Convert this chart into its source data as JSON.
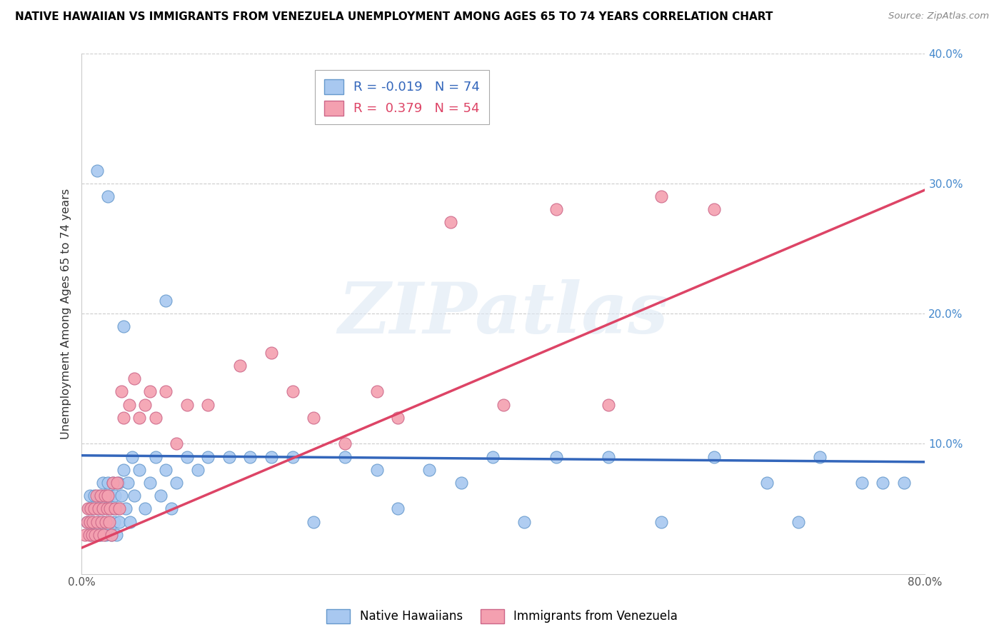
{
  "title": "NATIVE HAWAIIAN VS IMMIGRANTS FROM VENEZUELA UNEMPLOYMENT AMONG AGES 65 TO 74 YEARS CORRELATION CHART",
  "source": "Source: ZipAtlas.com",
  "ylabel": "Unemployment Among Ages 65 to 74 years",
  "xlim": [
    0,
    0.8
  ],
  "ylim": [
    0,
    0.4
  ],
  "ytick_positions": [
    0.1,
    0.2,
    0.3,
    0.4
  ],
  "ytick_labels": [
    "10.0%",
    "20.0%",
    "30.0%",
    "40.0%"
  ],
  "xtick_positions": [
    0.0,
    0.8
  ],
  "xtick_labels": [
    "0.0%",
    "80.0%"
  ],
  "blue_color": "#a8c8f0",
  "pink_color": "#f4a0b0",
  "blue_edge_color": "#6699cc",
  "pink_edge_color": "#cc6688",
  "blue_line_color": "#3366bb",
  "pink_line_color": "#dd4466",
  "R_blue": -0.019,
  "N_blue": 74,
  "R_pink": 0.379,
  "N_pink": 54,
  "legend_label_blue": "Native Hawaiians",
  "legend_label_pink": "Immigrants from Venezuela",
  "watermark": "ZIPatlas",
  "blue_trend_x0": 0.0,
  "blue_trend_y0": 0.091,
  "blue_trend_x1": 0.8,
  "blue_trend_y1": 0.086,
  "pink_trend_x0": 0.0,
  "pink_trend_y0": 0.02,
  "pink_trend_x1": 0.8,
  "pink_trend_y1": 0.295,
  "blue_scatter_x": [
    0.005,
    0.007,
    0.008,
    0.009,
    0.01,
    0.011,
    0.012,
    0.013,
    0.015,
    0.016,
    0.017,
    0.018,
    0.019,
    0.02,
    0.021,
    0.022,
    0.023,
    0.024,
    0.025,
    0.026,
    0.027,
    0.028,
    0.029,
    0.03,
    0.031,
    0.032,
    0.033,
    0.034,
    0.035,
    0.036,
    0.038,
    0.04,
    0.042,
    0.044,
    0.046,
    0.048,
    0.05,
    0.055,
    0.06,
    0.065,
    0.07,
    0.075,
    0.08,
    0.085,
    0.09,
    0.1,
    0.11,
    0.12,
    0.14,
    0.16,
    0.18,
    0.2,
    0.22,
    0.25,
    0.28,
    0.3,
    0.33,
    0.36,
    0.39,
    0.42,
    0.45,
    0.5,
    0.55,
    0.6,
    0.65,
    0.68,
    0.7,
    0.74,
    0.76,
    0.78,
    0.015,
    0.025,
    0.04,
    0.08
  ],
  "blue_scatter_y": [
    0.04,
    0.05,
    0.06,
    0.03,
    0.05,
    0.04,
    0.06,
    0.03,
    0.05,
    0.04,
    0.06,
    0.03,
    0.05,
    0.07,
    0.04,
    0.06,
    0.03,
    0.05,
    0.07,
    0.04,
    0.06,
    0.03,
    0.05,
    0.07,
    0.04,
    0.06,
    0.03,
    0.05,
    0.07,
    0.04,
    0.06,
    0.08,
    0.05,
    0.07,
    0.04,
    0.09,
    0.06,
    0.08,
    0.05,
    0.07,
    0.09,
    0.06,
    0.08,
    0.05,
    0.07,
    0.09,
    0.08,
    0.09,
    0.09,
    0.09,
    0.09,
    0.09,
    0.04,
    0.09,
    0.08,
    0.05,
    0.08,
    0.07,
    0.09,
    0.04,
    0.09,
    0.09,
    0.04,
    0.09,
    0.07,
    0.04,
    0.09,
    0.07,
    0.07,
    0.07,
    0.31,
    0.29,
    0.19,
    0.21
  ],
  "pink_scatter_x": [
    0.003,
    0.005,
    0.006,
    0.007,
    0.008,
    0.009,
    0.01,
    0.011,
    0.012,
    0.013,
    0.014,
    0.015,
    0.016,
    0.017,
    0.018,
    0.019,
    0.02,
    0.021,
    0.022,
    0.023,
    0.024,
    0.025,
    0.026,
    0.027,
    0.028,
    0.03,
    0.032,
    0.034,
    0.036,
    0.038,
    0.04,
    0.045,
    0.05,
    0.055,
    0.06,
    0.065,
    0.07,
    0.08,
    0.09,
    0.1,
    0.12,
    0.15,
    0.18,
    0.2,
    0.22,
    0.25,
    0.28,
    0.3,
    0.35,
    0.4,
    0.45,
    0.5,
    0.55,
    0.6
  ],
  "pink_scatter_y": [
    0.03,
    0.04,
    0.05,
    0.03,
    0.04,
    0.05,
    0.03,
    0.04,
    0.05,
    0.03,
    0.06,
    0.04,
    0.05,
    0.03,
    0.06,
    0.04,
    0.05,
    0.03,
    0.06,
    0.04,
    0.05,
    0.06,
    0.04,
    0.05,
    0.03,
    0.07,
    0.05,
    0.07,
    0.05,
    0.14,
    0.12,
    0.13,
    0.15,
    0.12,
    0.13,
    0.14,
    0.12,
    0.14,
    0.1,
    0.13,
    0.13,
    0.16,
    0.17,
    0.14,
    0.12,
    0.1,
    0.14,
    0.12,
    0.27,
    0.13,
    0.28,
    0.13,
    0.29,
    0.28
  ]
}
